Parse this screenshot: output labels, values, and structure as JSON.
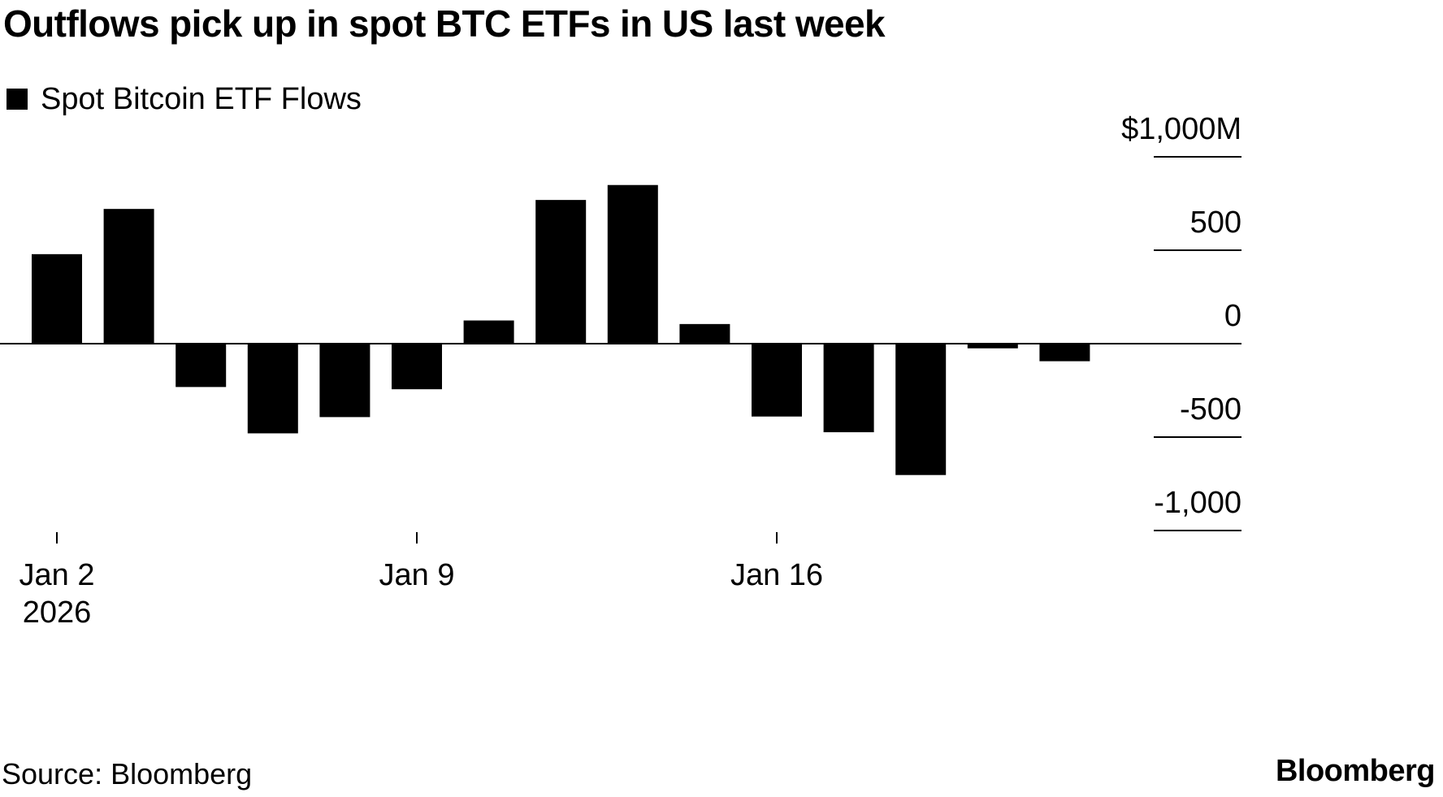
{
  "chart_data": {
    "type": "bar",
    "title": "Outflows pick up in spot BTC ETFs in US last week",
    "series": [
      {
        "name": "Spot Bitcoin ETF Flows",
        "color": "#000000",
        "values": [
          479,
          721,
          -232,
          -480,
          -393,
          -244,
          124,
          769,
          849,
          105,
          -390,
          -474,
          -703,
          -25,
          -94
        ]
      }
    ],
    "x": [
      "2026-01-02",
      "2026-01-05",
      "2026-01-06",
      "2026-01-07",
      "2026-01-08",
      "2026-01-09",
      "2026-01-12",
      "2026-01-13",
      "2026-01-14",
      "2026-01-15",
      "2026-01-16",
      "2026-01-20",
      "2026-01-21",
      "2026-01-22",
      "2026-01-23"
    ],
    "x_ticks": [
      {
        "index": 0,
        "label": "Jan 2",
        "sublabel": "2026"
      },
      {
        "index": 5,
        "label": "Jan 9"
      },
      {
        "index": 10,
        "label": "Jan 16"
      }
    ],
    "y_ticks": [
      {
        "value": 1000,
        "label": "$1,000M"
      },
      {
        "value": 500,
        "label": "500"
      },
      {
        "value": 0,
        "label": "0"
      },
      {
        "value": -500,
        "label": "-500"
      },
      {
        "value": -1000,
        "label": "-1,000"
      }
    ],
    "ylim": [
      -1000,
      1000
    ],
    "ylabel": "",
    "xlabel": "",
    "grid": false,
    "legend": "top-left",
    "axis_side": "right"
  },
  "footer": {
    "source": "Source: Bloomberg",
    "brand": "Bloomberg"
  }
}
